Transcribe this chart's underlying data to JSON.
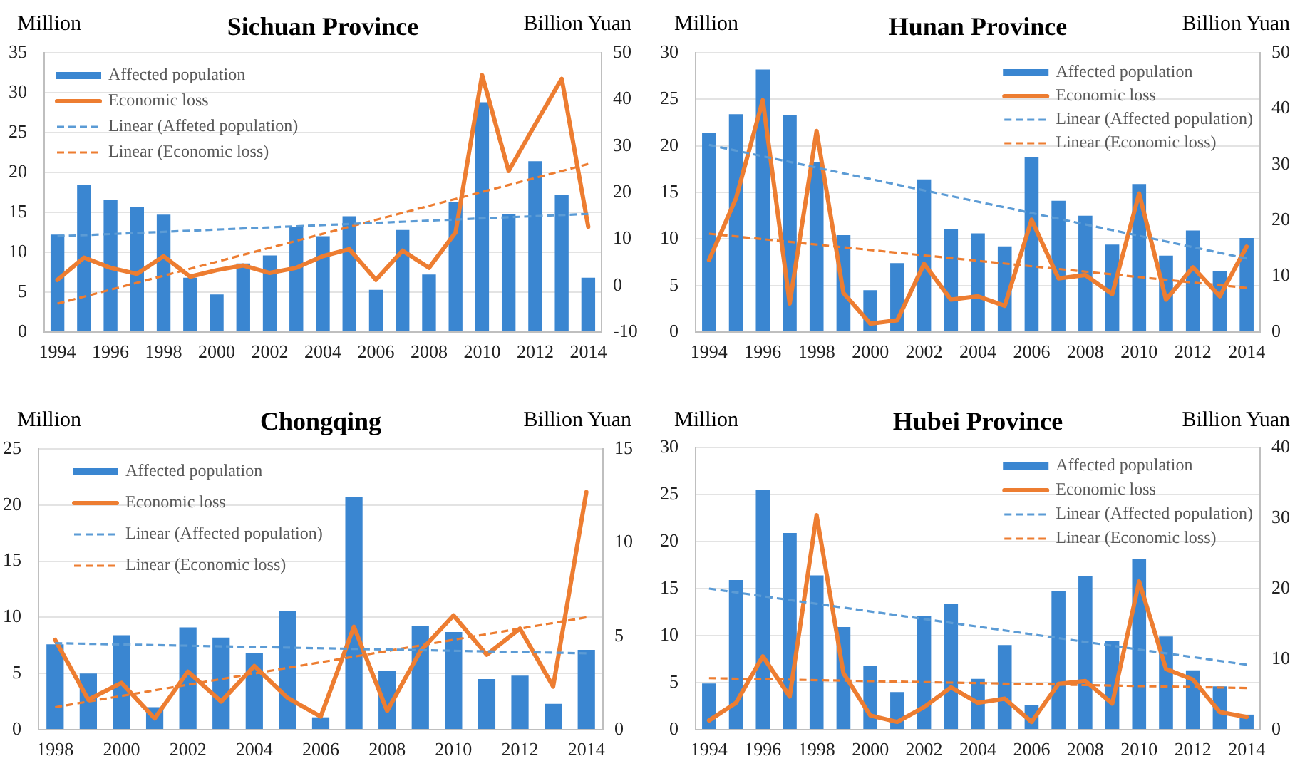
{
  "chart_data": [
    {
      "type": "bar",
      "title": "Sichuan Province",
      "ylabel": "Million",
      "y2label": "Billion Yuan",
      "x": [
        1994,
        1995,
        1996,
        1997,
        1998,
        1999,
        2000,
        2001,
        2002,
        2003,
        2004,
        2005,
        2006,
        2007,
        2008,
        2009,
        2010,
        2011,
        2012,
        2013,
        2014
      ],
      "xlim": [
        1993.5,
        2014.5
      ],
      "xticks": [
        1994,
        1996,
        1998,
        2000,
        2002,
        2004,
        2006,
        2008,
        2010,
        2012,
        2014
      ],
      "ylim": [
        0,
        35
      ],
      "yticks": [
        0,
        5,
        10,
        15,
        20,
        25,
        30,
        35
      ],
      "y2lim": [
        -10,
        50
      ],
      "y2ticks": [
        -10,
        0,
        10,
        20,
        30,
        40,
        50
      ],
      "grid": "y",
      "legend": "top left",
      "series": [
        {
          "name": "Affected population",
          "color": "#3a86d1",
          "values": [
            12.2,
            18.4,
            16.6,
            15.7,
            14.7,
            6.8,
            4.7,
            8.6,
            9.6,
            13.2,
            12.0,
            14.5,
            5.3,
            12.8,
            7.2,
            16.3,
            28.8,
            14.8,
            21.4,
            17.2,
            6.8
          ]
        },
        {
          "name": "Economic loss",
          "type": "line",
          "axis": "y2",
          "color": "#ed7d31",
          "line_style": "solid",
          "values": [
            1.2,
            6.0,
            3.8,
            2.5,
            6.3,
            1.9,
            3.3,
            4.3,
            2.7,
            3.8,
            6.3,
            7.8,
            1.2,
            7.5,
            3.8,
            11.4,
            45.2,
            24.6,
            34.6,
            44.4,
            12.6
          ]
        },
        {
          "name": "Linear (Affeted population)",
          "type": "line",
          "color": "#5b9bd5",
          "line_style": "dashed",
          "x": [
            1994,
            2014
          ],
          "values": [
            12.0,
            14.8
          ]
        },
        {
          "name": "Linear (Economic loss)",
          "type": "line",
          "axis": "y2",
          "color": "#ed7d31",
          "line_style": "dashed",
          "x": [
            1994,
            2014
          ],
          "values": [
            -3.9,
            26.1
          ]
        }
      ]
    },
    {
      "type": "bar",
      "title": "Hunan Province",
      "ylabel": "Million",
      "y2label": "Billion Yuan",
      "x": [
        1994,
        1995,
        1996,
        1997,
        1998,
        1999,
        2000,
        2001,
        2002,
        2003,
        2004,
        2005,
        2006,
        2007,
        2008,
        2009,
        2010,
        2011,
        2012,
        2013,
        2014
      ],
      "xlim": [
        1993.5,
        2014.5
      ],
      "xticks": [
        1994,
        1996,
        1998,
        2000,
        2002,
        2004,
        2006,
        2008,
        2010,
        2012,
        2014
      ],
      "ylim": [
        0,
        30
      ],
      "yticks": [
        0,
        5,
        10,
        15,
        20,
        25,
        30
      ],
      "y2lim": [
        0,
        50
      ],
      "y2ticks": [
        0,
        10,
        20,
        30,
        40,
        50
      ],
      "grid": "y",
      "legend": "top right",
      "series": [
        {
          "name": "Affected population",
          "color": "#3a86d1",
          "values": [
            21.4,
            23.4,
            28.2,
            23.3,
            18.3,
            10.4,
            4.5,
            7.4,
            16.4,
            11.1,
            10.6,
            9.2,
            18.8,
            14.1,
            12.5,
            9.4,
            15.9,
            8.2,
            10.9,
            6.5,
            10.1
          ]
        },
        {
          "name": "Economic loss",
          "type": "line",
          "axis": "y2",
          "color": "#ed7d31",
          "line_style": "solid",
          "values": [
            12.9,
            23.9,
            41.5,
            5.1,
            36.0,
            7.0,
            1.5,
            2.1,
            12.2,
            5.8,
            6.4,
            4.7,
            20.1,
            9.6,
            10.2,
            6.8,
            24.8,
            5.8,
            11.6,
            6.4,
            15.3
          ]
        },
        {
          "name": "Linear (Affected population)",
          "type": "line",
          "color": "#5b9bd5",
          "line_style": "dashed",
          "x": [
            1994,
            2014
          ],
          "values": [
            20.1,
            7.9
          ]
        },
        {
          "name": "Linear (Economic loss)",
          "type": "line",
          "axis": "y2",
          "color": "#ed7d31",
          "line_style": "dashed",
          "x": [
            1994,
            2014
          ],
          "values": [
            17.6,
            7.9
          ]
        }
      ]
    },
    {
      "type": "bar",
      "title": "Chongqing",
      "ylabel": "Million",
      "y2label": "Billion Yuan",
      "x": [
        1998,
        1999,
        2000,
        2001,
        2002,
        2003,
        2004,
        2005,
        2006,
        2007,
        2008,
        2009,
        2010,
        2011,
        2012,
        2013,
        2014
      ],
      "xlim": [
        1997.5,
        2014.5
      ],
      "xticks": [
        1998,
        2000,
        2002,
        2004,
        2006,
        2008,
        2010,
        2012,
        2014
      ],
      "ylim": [
        0,
        25
      ],
      "yticks": [
        0,
        5,
        10,
        15,
        20,
        25
      ],
      "y2lim": [
        0,
        15
      ],
      "y2ticks": [
        0,
        5,
        10,
        15
      ],
      "grid": "y",
      "legend": "top left",
      "series": [
        {
          "name": "Affected population",
          "color": "#3a86d1",
          "values": [
            7.6,
            5.0,
            8.4,
            2.0,
            9.1,
            8.2,
            6.8,
            10.6,
            1.1,
            20.7,
            5.2,
            9.2,
            8.7,
            4.5,
            4.8,
            2.3,
            7.1
          ]
        },
        {
          "name": "Economic loss",
          "type": "line",
          "axis": "y2",
          "color": "#ed7d31",
          "line_style": "solid",
          "values": [
            4.8,
            1.6,
            2.5,
            0.6,
            3.1,
            1.5,
            3.4,
            1.7,
            0.7,
            5.5,
            1.0,
            4.2,
            6.1,
            4.0,
            5.4,
            2.3,
            12.7
          ]
        },
        {
          "name": "Linear (Affected population)",
          "type": "line",
          "color": "#5b9bd5",
          "line_style": "dashed",
          "x": [
            1998,
            2014
          ],
          "values": [
            7.7,
            6.8
          ]
        },
        {
          "name": "Linear (Economic loss)",
          "type": "line",
          "axis": "y2",
          "color": "#ed7d31",
          "line_style": "dashed",
          "x": [
            1998,
            2014
          ],
          "values": [
            1.2,
            6.0
          ]
        }
      ]
    },
    {
      "type": "bar",
      "title": "Hubei Province",
      "ylabel": "Million",
      "y2label": "Billion Yuan",
      "x": [
        1994,
        1995,
        1996,
        1997,
        1998,
        1999,
        2000,
        2001,
        2002,
        2003,
        2004,
        2005,
        2006,
        2007,
        2008,
        2009,
        2010,
        2011,
        2012,
        2013,
        2014
      ],
      "xlim": [
        1993.5,
        2014.5
      ],
      "xticks": [
        1994,
        1996,
        1998,
        2000,
        2002,
        2004,
        2006,
        2008,
        2010,
        2012,
        2014
      ],
      "ylim": [
        0,
        30
      ],
      "yticks": [
        0,
        5,
        10,
        15,
        20,
        25,
        30
      ],
      "y2lim": [
        0,
        40
      ],
      "y2ticks": [
        0,
        10,
        20,
        30,
        40
      ],
      "grid": "y",
      "legend": "top right",
      "series": [
        {
          "name": "Affected population",
          "color": "#3a86d1",
          "values": [
            4.9,
            15.9,
            25.5,
            20.9,
            16.4,
            10.9,
            6.8,
            4.0,
            12.1,
            13.4,
            5.4,
            9.0,
            2.6,
            14.7,
            16.3,
            9.4,
            18.1,
            9.9,
            6.3,
            4.6,
            1.6
          ]
        },
        {
          "name": "Economic loss",
          "type": "line",
          "axis": "y2",
          "color": "#ed7d31",
          "line_style": "solid",
          "values": [
            1.3,
            3.8,
            10.4,
            4.7,
            30.4,
            8.0,
            2.0,
            1.1,
            3.2,
            6.0,
            3.8,
            4.4,
            1.1,
            6.5,
            6.9,
            3.7,
            21.0,
            8.6,
            7.1,
            2.5,
            1.8
          ]
        },
        {
          "name": "Linear (Affected population)",
          "type": "line",
          "color": "#5b9bd5",
          "line_style": "dashed",
          "x": [
            1994,
            2014
          ],
          "values": [
            15.0,
            6.9
          ]
        },
        {
          "name": "Linear (Economic loss)",
          "type": "line",
          "axis": "y2",
          "color": "#ed7d31",
          "line_style": "dashed",
          "x": [
            1994,
            2014
          ],
          "values": [
            7.3,
            5.9
          ]
        }
      ]
    }
  ]
}
